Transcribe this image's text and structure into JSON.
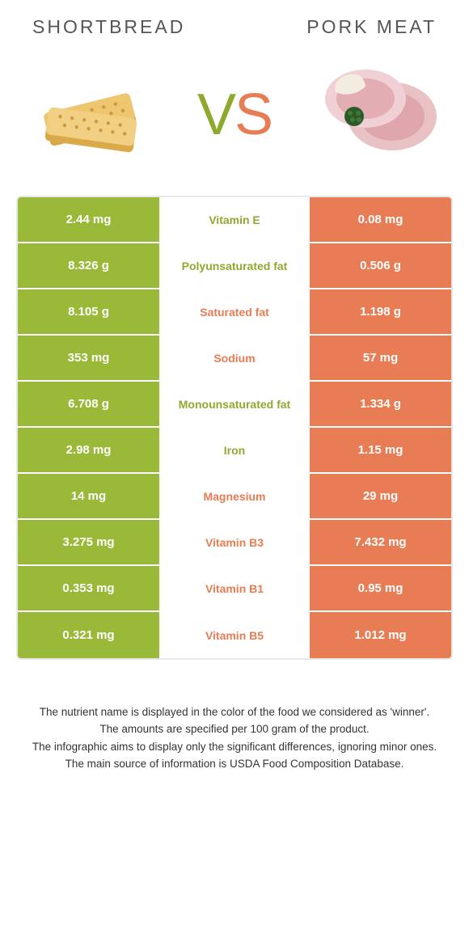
{
  "colors": {
    "left": "#9ab938",
    "right": "#e87c54",
    "left_text": "#8fa92f",
    "right_text": "#e87c54",
    "title": "#555555",
    "footnote": "#333333",
    "border": "#e8e8e8",
    "bg": "#ffffff"
  },
  "header": {
    "left_title": "Shortbread",
    "right_title": "Pork meat"
  },
  "vs": {
    "v": "V",
    "s": "S"
  },
  "rows": [
    {
      "left": "2.44 mg",
      "label": "Vitamin E",
      "right": "0.08 mg",
      "winner": "left"
    },
    {
      "left": "8.326 g",
      "label": "Polyunsaturated fat",
      "right": "0.506 g",
      "winner": "left"
    },
    {
      "left": "8.105 g",
      "label": "Saturated fat",
      "right": "1.198 g",
      "winner": "right"
    },
    {
      "left": "353 mg",
      "label": "Sodium",
      "right": "57 mg",
      "winner": "right"
    },
    {
      "left": "6.708 g",
      "label": "Monounsaturated fat",
      "right": "1.334 g",
      "winner": "left"
    },
    {
      "left": "2.98 mg",
      "label": "Iron",
      "right": "1.15 mg",
      "winner": "left"
    },
    {
      "left": "14 mg",
      "label": "Magnesium",
      "right": "29 mg",
      "winner": "right"
    },
    {
      "left": "3.275 mg",
      "label": "Vitamin B3",
      "right": "7.432 mg",
      "winner": "right"
    },
    {
      "left": "0.353 mg",
      "label": "Vitamin B1",
      "right": "0.95 mg",
      "winner": "right"
    },
    {
      "left": "0.321 mg",
      "label": "Vitamin B5",
      "right": "1.012 mg",
      "winner": "right"
    }
  ],
  "footnotes": [
    "The nutrient name is displayed in the color of the food we considered as 'winner'.",
    "The amounts are specified per 100 gram of the product.",
    "The infographic aims to display only the significant differences, ignoring minor ones.",
    "The main source of information is USDA Food Composition Database."
  ]
}
